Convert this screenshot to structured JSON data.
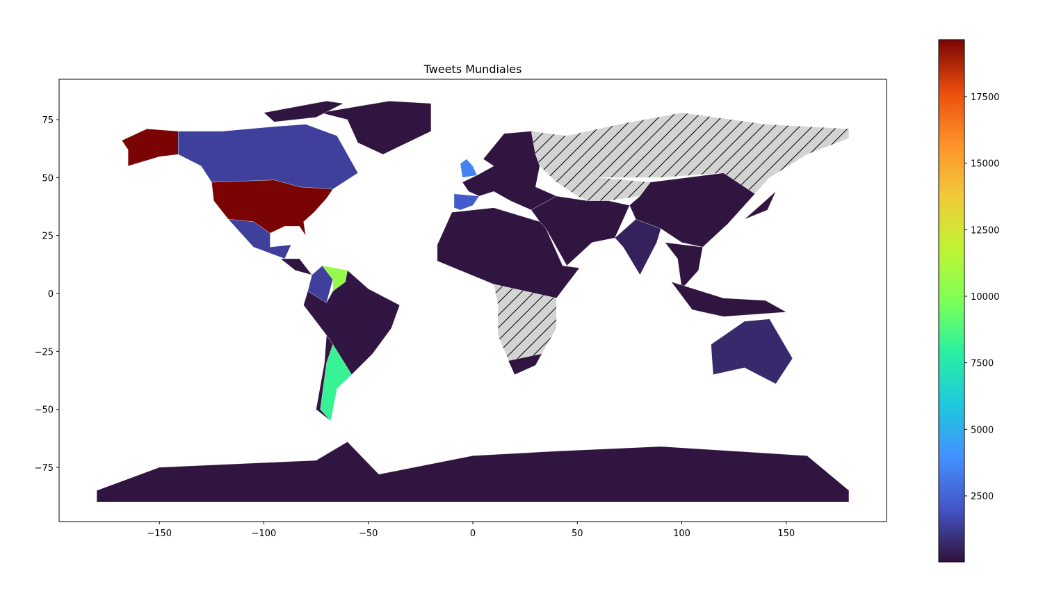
{
  "chart_data": {
    "type": "choropleth",
    "title": "Tweets Mundiales",
    "xlim": [
      -198,
      198
    ],
    "ylim": [
      -98.4,
      92.4
    ],
    "xticks": [
      {
        "value": -150,
        "label": "−150"
      },
      {
        "value": -100,
        "label": "−100"
      },
      {
        "value": -50,
        "label": "−50"
      },
      0,
      50,
      100,
      150
    ],
    "yticks": [
      {
        "value": -75,
        "label": "−75"
      },
      {
        "value": -50,
        "label": "−50"
      },
      {
        "value": -25,
        "label": "−25"
      },
      0,
      25,
      50,
      75
    ],
    "colormap": "turbo",
    "clim": [
      18,
      19640
    ],
    "cticks": [
      2500,
      5000,
      7500,
      10000,
      12500,
      15000,
      17500
    ],
    "missing_hatch": true,
    "regions": [
      {
        "value": 100
      },
      {
        "value": 19640
      },
      {
        "value": 19640
      },
      {
        "value": 1400
      },
      {
        "value": 100
      },
      {
        "value": 1400
      },
      {
        "value": 100
      },
      {
        "value": 1400
      },
      {
        "value": 10500
      },
      {
        "value": 150
      },
      {
        "value": 8200
      },
      {
        "value": 100
      },
      {
        "value": 3500
      },
      {
        "value": 2200
      },
      {
        "value": 100
      },
      {
        "value": null
      },
      {
        "value": null
      },
      {
        "value": 100
      },
      {
        "value": 500
      },
      {
        "value": 100
      },
      {
        "value": 100
      },
      {
        "value": null
      },
      {
        "value": 100
      },
      {
        "value": 100
      },
      {
        "value": 100
      },
      {
        "value": 100
      },
      {
        "value": 700
      },
      {
        "value": 100
      }
    ]
  }
}
